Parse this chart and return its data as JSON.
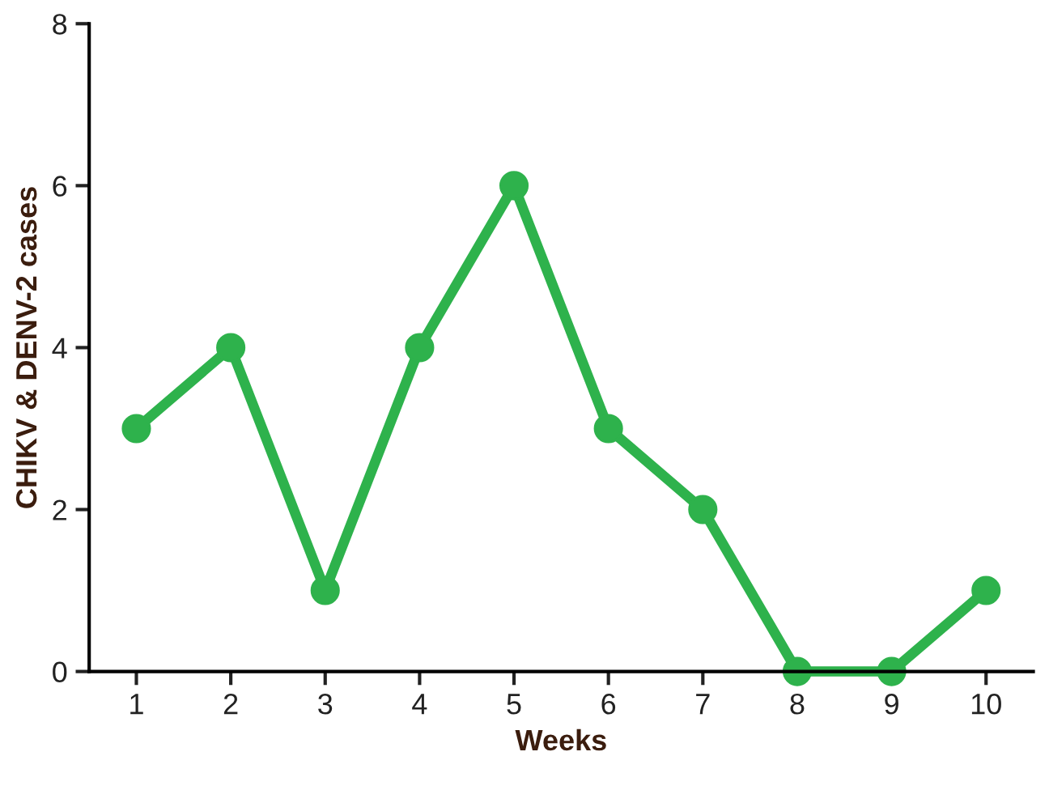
{
  "chart_data": {
    "type": "line",
    "xlabel": "Weeks",
    "ylabel": "CHIKV & DENV-2 cases",
    "categories": [
      "1",
      "2",
      "3",
      "4",
      "5",
      "6",
      "7",
      "8",
      "9",
      "10"
    ],
    "series": [
      {
        "color": "#2eb24c",
        "values": [
          3,
          4,
          1,
          4,
          6,
          3,
          2,
          0,
          0,
          1
        ]
      }
    ],
    "ylim": [
      0,
      8
    ],
    "yticks": [
      0,
      2,
      4,
      6,
      8
    ],
    "grid": false,
    "legend": false,
    "marker": "circle",
    "line_style": "solid"
  }
}
